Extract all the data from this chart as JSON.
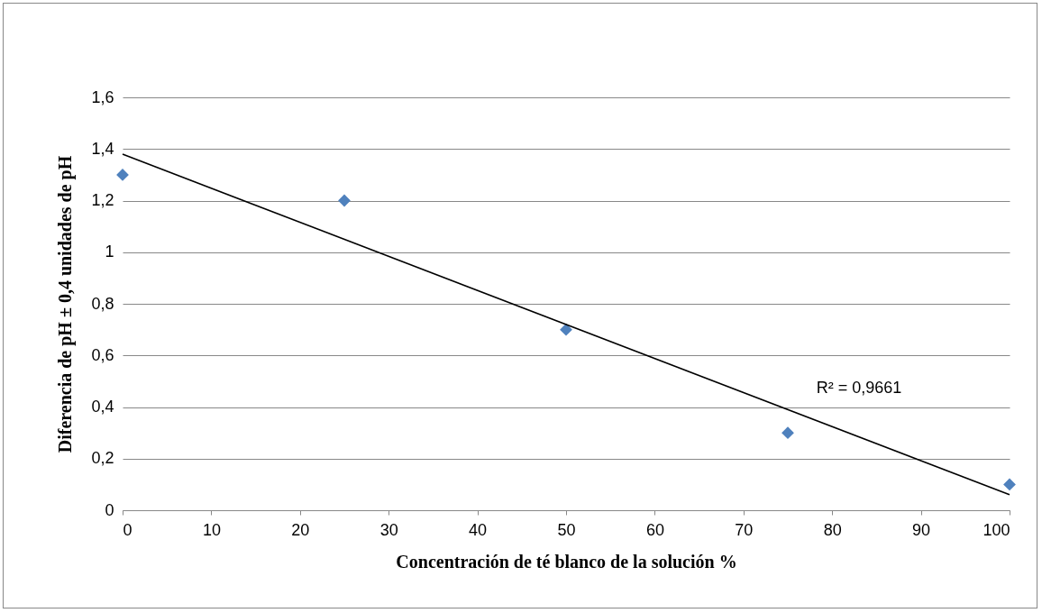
{
  "chart_data": {
    "type": "scatter",
    "xlabel": "Concentración de té blanco de la solución %",
    "ylabel": "Diferencia de pH ± 0,4 unidades de pH",
    "x": [
      0,
      25,
      50,
      75,
      100
    ],
    "series": [
      {
        "color": "#4f81bd",
        "marker": "diamond",
        "values": [
          1.3,
          1.2,
          0.7,
          0.3,
          0.1
        ]
      },
      {
        "type": "line",
        "color": "#000000",
        "line_style": "solid",
        "x": [
          0,
          100
        ],
        "values": [
          1.38,
          0.06
        ]
      }
    ],
    "xlim": [
      0,
      100
    ],
    "xticks": [
      0,
      10,
      20,
      30,
      40,
      50,
      60,
      70,
      80,
      90,
      100
    ],
    "ylim": [
      0,
      1.6
    ],
    "yticks": [
      0,
      {
        "value": 0.2,
        "label": "0,2"
      },
      {
        "value": 0.4,
        "label": "0,4"
      },
      {
        "value": 0.6,
        "label": "0,6"
      },
      {
        "value": 0.8,
        "label": "0,8"
      },
      1,
      {
        "value": 1.2,
        "label": "1,2"
      },
      {
        "value": 1.4,
        "label": "1,4"
      },
      {
        "value": 1.6,
        "label": "1,6"
      }
    ],
    "grid": "y",
    "annotations": [
      "R² = 0,9661"
    ]
  }
}
